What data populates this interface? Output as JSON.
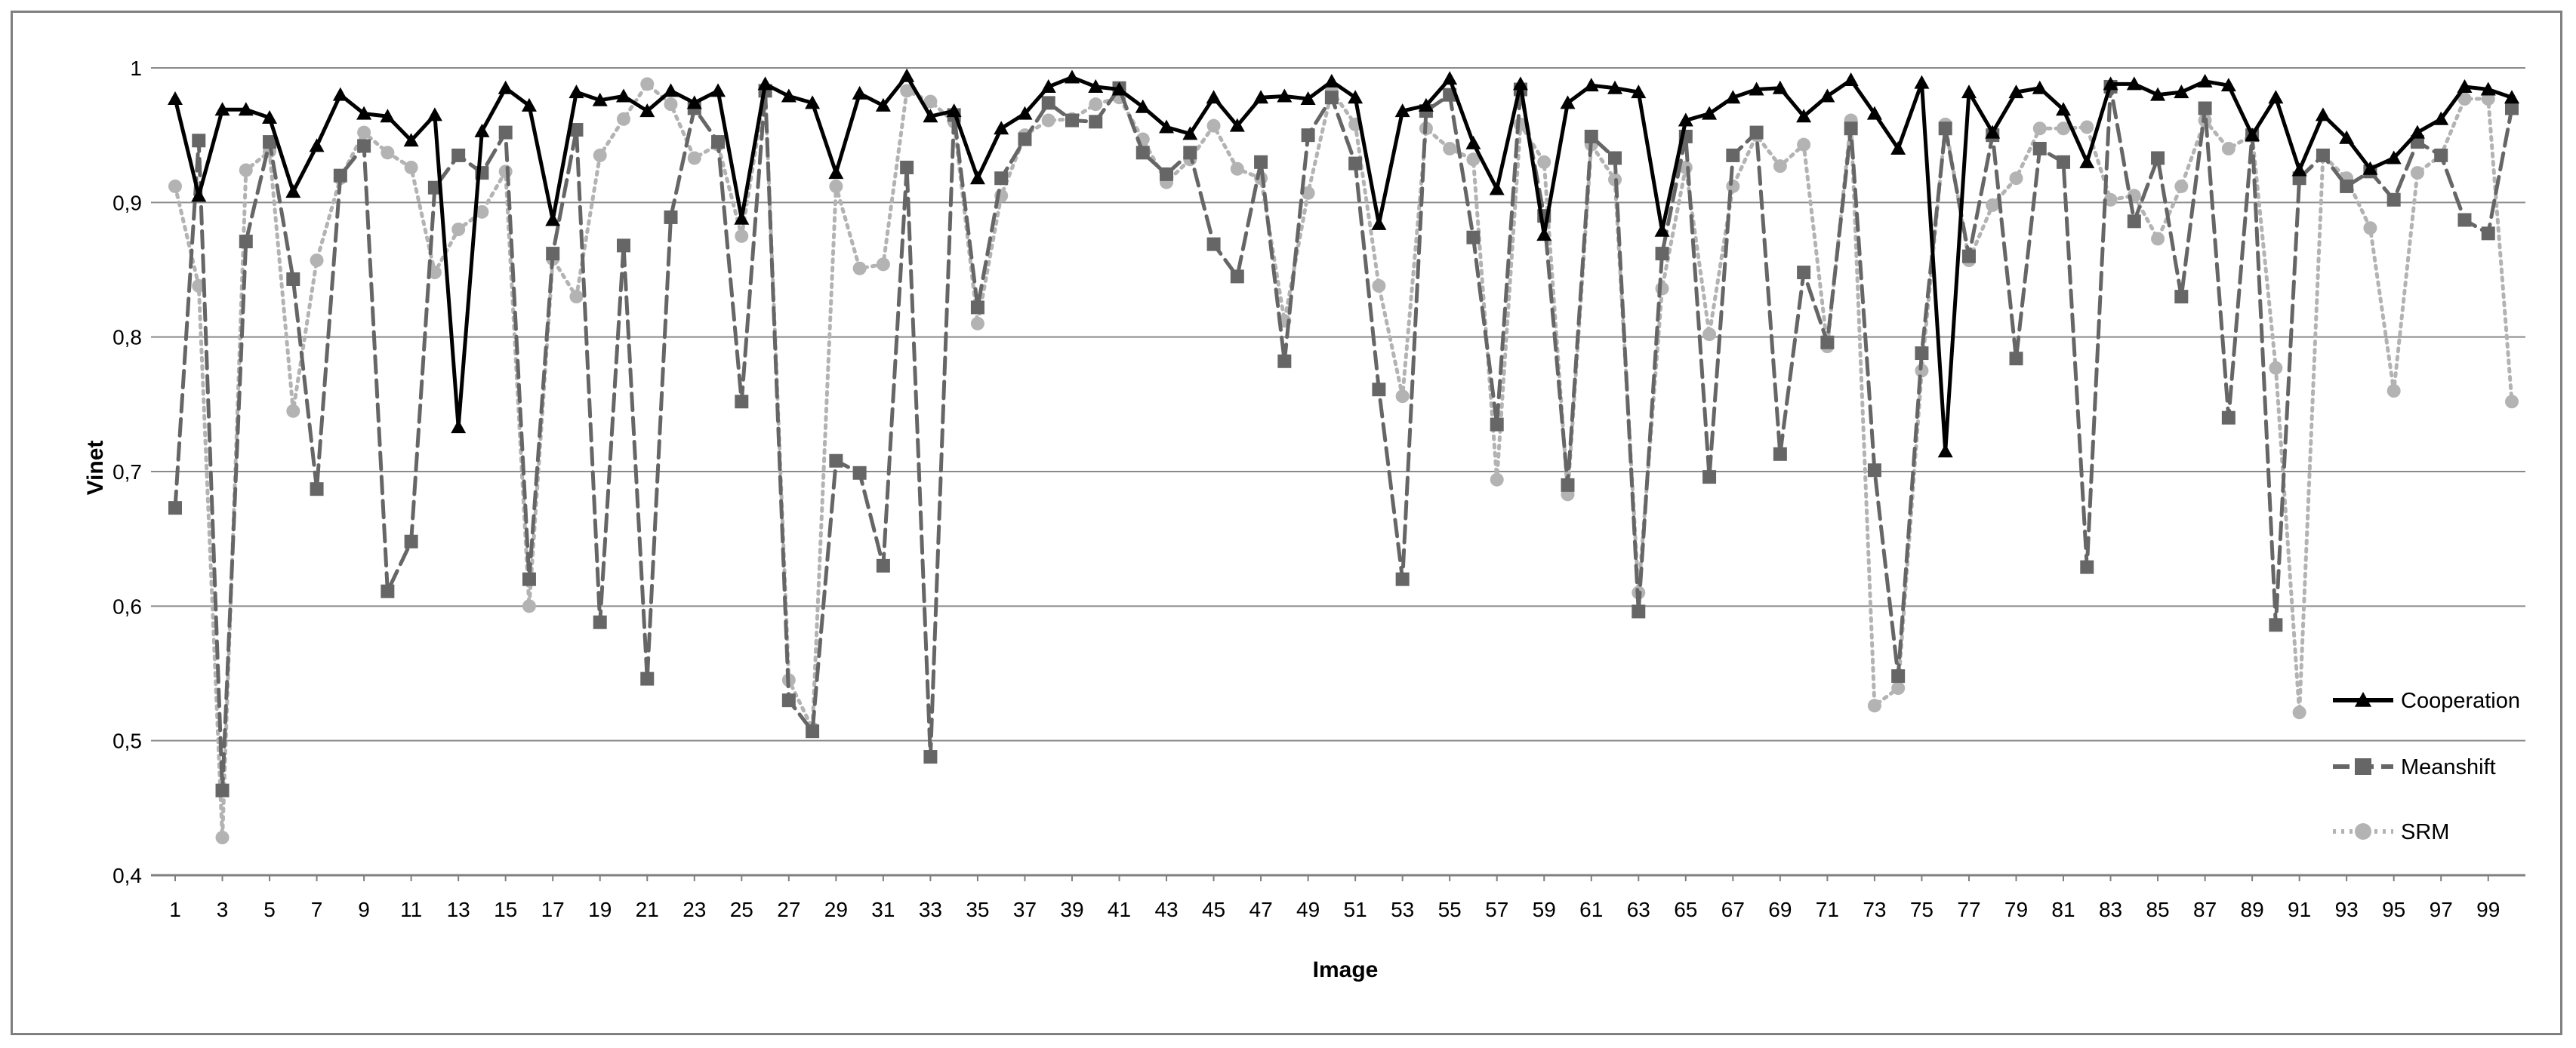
{
  "chart_data": {
    "type": "line",
    "xlabel": "Image",
    "ylabel": "Vinet",
    "ylim": [
      0.4,
      1.0
    ],
    "yticks": [
      "0,4",
      "0,5",
      "0,6",
      "0,7",
      "0,8",
      "0,9",
      "1"
    ],
    "xticks": [
      "1",
      "3",
      "5",
      "7",
      "9",
      "11",
      "13",
      "15",
      "17",
      "19",
      "21",
      "23",
      "25",
      "27",
      "29",
      "31",
      "33",
      "35",
      "37",
      "39",
      "41",
      "43",
      "45",
      "47",
      "49",
      "51",
      "53",
      "55",
      "57",
      "59",
      "61",
      "63",
      "65",
      "67",
      "69",
      "71",
      "73",
      "75",
      "77",
      "79",
      "81",
      "83",
      "85",
      "87",
      "89",
      "91",
      "93",
      "95",
      "97",
      "99"
    ],
    "grid": "horizontal",
    "legend": "right",
    "x": [
      1,
      2,
      3,
      4,
      5,
      6,
      7,
      8,
      9,
      10,
      11,
      12,
      13,
      14,
      15,
      16,
      17,
      18,
      19,
      20,
      21,
      22,
      23,
      24,
      25,
      26,
      27,
      28,
      29,
      30,
      31,
      32,
      33,
      34,
      35,
      36,
      37,
      38,
      39,
      40,
      41,
      42,
      43,
      44,
      45,
      46,
      47,
      48,
      49,
      50,
      51,
      52,
      53,
      54,
      55,
      56,
      57,
      58,
      59,
      60,
      61,
      62,
      63,
      64,
      65,
      66,
      67,
      68,
      69,
      70,
      71,
      72,
      73,
      74,
      75,
      76,
      77,
      78,
      79,
      80,
      81,
      82,
      83,
      84,
      85,
      86,
      87,
      88,
      89,
      90,
      91,
      92,
      93,
      94,
      95,
      96,
      97,
      98,
      99,
      100
    ],
    "series": [
      {
        "name": "Cooperation",
        "color": "#000000",
        "style": "solid",
        "marker": "triangle",
        "values": [
          0.977,
          0.905,
          0.969,
          0.969,
          0.963,
          0.908,
          0.942,
          0.98,
          0.966,
          0.964,
          0.946,
          0.965,
          0.733,
          0.953,
          0.985,
          0.972,
          0.887,
          0.982,
          0.976,
          0.979,
          0.968,
          0.983,
          0.974,
          0.983,
          0.888,
          0.988,
          0.979,
          0.974,
          0.922,
          0.981,
          0.972,
          0.994,
          0.964,
          0.968,
          0.918,
          0.955,
          0.966,
          0.986,
          0.993,
          0.986,
          0.984,
          0.971,
          0.956,
          0.951,
          0.978,
          0.957,
          0.978,
          0.979,
          0.977,
          0.99,
          0.978,
          0.884,
          0.968,
          0.972,
          0.992,
          0.944,
          0.91,
          0.988,
          0.876,
          0.974,
          0.987,
          0.985,
          0.982,
          0.879,
          0.961,
          0.966,
          0.978,
          0.984,
          0.985,
          0.964,
          0.979,
          0.991,
          0.966,
          0.94,
          0.989,
          0.715,
          0.982,
          0.952,
          0.982,
          0.985,
          0.969,
          0.93,
          0.988,
          0.988,
          0.98,
          0.982,
          0.99,
          0.987,
          0.95,
          0.978,
          0.924,
          0.965,
          0.948,
          0.925,
          0.933,
          0.952,
          0.962,
          0.986,
          0.984,
          0.978
        ]
      },
      {
        "name": "Meanshift",
        "color": "#666666",
        "style": "dashed",
        "marker": "square",
        "values": [
          0.673,
          0.946,
          0.463,
          0.871,
          0.945,
          0.843,
          0.687,
          0.92,
          0.942,
          0.611,
          0.648,
          0.911,
          0.935,
          0.922,
          0.952,
          0.62,
          0.862,
          0.954,
          0.588,
          0.868,
          0.546,
          0.889,
          0.97,
          0.945,
          0.752,
          0.983,
          0.53,
          0.507,
          0.708,
          0.699,
          0.63,
          0.926,
          0.488,
          0.965,
          0.822,
          0.918,
          0.947,
          0.974,
          0.961,
          0.96,
          0.985,
          0.937,
          0.921,
          0.937,
          0.869,
          0.845,
          0.93,
          0.782,
          0.95,
          0.978,
          0.929,
          0.761,
          0.62,
          0.968,
          0.98,
          0.874,
          0.735,
          0.984,
          0.89,
          0.69,
          0.949,
          0.933,
          0.596,
          0.862,
          0.949,
          0.696,
          0.935,
          0.952,
          0.713,
          0.848,
          0.796,
          0.955,
          0.701,
          0.548,
          0.788,
          0.955,
          0.86,
          0.95,
          0.784,
          0.94,
          0.93,
          0.629,
          0.986,
          0.886,
          0.933,
          0.83,
          0.97,
          0.74,
          0.95,
          0.586,
          0.918,
          0.935,
          0.912,
          0.923,
          0.902,
          0.945,
          0.935,
          0.887,
          0.877,
          0.97
        ]
      },
      {
        "name": "SRM",
        "color": "#b3b3b3",
        "style": "dotted",
        "marker": "circle",
        "values": [
          0.912,
          0.838,
          0.428,
          0.924,
          0.938,
          0.745,
          0.857,
          0.918,
          0.952,
          0.937,
          0.926,
          0.848,
          0.88,
          0.893,
          0.923,
          0.6,
          0.858,
          0.83,
          0.935,
          0.962,
          0.988,
          0.973,
          0.933,
          0.943,
          0.875,
          0.984,
          0.545,
          0.509,
          0.912,
          0.851,
          0.854,
          0.983,
          0.975,
          0.96,
          0.81,
          0.905,
          0.95,
          0.961,
          0.962,
          0.973,
          0.978,
          0.947,
          0.915,
          0.932,
          0.957,
          0.925,
          0.918,
          0.812,
          0.907,
          0.983,
          0.958,
          0.838,
          0.756,
          0.955,
          0.94,
          0.932,
          0.694,
          0.958,
          0.93,
          0.683,
          0.943,
          0.917,
          0.61,
          0.836,
          0.926,
          0.802,
          0.912,
          0.95,
          0.927,
          0.943,
          0.793,
          0.961,
          0.526,
          0.539,
          0.775,
          0.958,
          0.857,
          0.898,
          0.918,
          0.955,
          0.955,
          0.956,
          0.902,
          0.905,
          0.873,
          0.912,
          0.961,
          0.94,
          0.95,
          0.777,
          0.521,
          0.935,
          0.918,
          0.881,
          0.76,
          0.922,
          0.935,
          0.977,
          0.977,
          0.752
        ]
      }
    ]
  }
}
